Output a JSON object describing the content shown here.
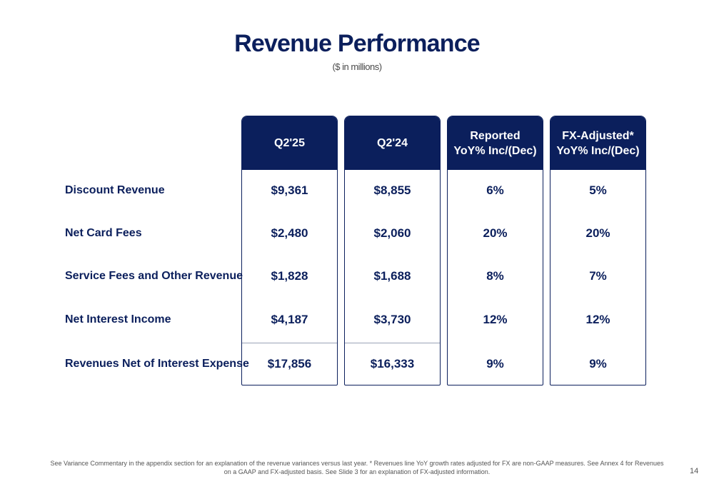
{
  "title": "Revenue Performance",
  "subtitle": "($ in millions)",
  "columns": [
    {
      "header": "Q2'25"
    },
    {
      "header": "Q2'24"
    },
    {
      "header": "Reported\nYoY% Inc/(Dec)"
    },
    {
      "header": "FX-Adjusted*\nYoY% Inc/(Dec)"
    }
  ],
  "rows": [
    {
      "label": "Discount Revenue",
      "values": [
        "$9,361",
        "$8,855",
        "6%",
        "5%"
      ]
    },
    {
      "label": "Net Card Fees",
      "values": [
        "$2,480",
        "$2,060",
        "20%",
        "20%"
      ]
    },
    {
      "label": "Service Fees and Other Revenue",
      "values": [
        "$1,828",
        "$1,688",
        "8%",
        "7%"
      ]
    },
    {
      "label": "Net Interest Income",
      "values": [
        "$4,187",
        "$3,730",
        "12%",
        "12%"
      ]
    },
    {
      "label": "Revenues Net of Interest Expense",
      "values": [
        "$17,856",
        "$16,333",
        "9%",
        "9%"
      ]
    }
  ],
  "footnote": "See Variance Commentary in the appendix section for an explanation of the revenue variances versus last year. * Revenues line YoY growth rates adjusted for FX are non-GAAP measures. See Annex 4 for Revenues on a GAAP and FX-adjusted basis. See Slide 3 for an explanation of FX-adjusted information.",
  "page_number": "14",
  "colors": {
    "navy": "#0b1f5c",
    "divider": "#9aa3b8"
  }
}
